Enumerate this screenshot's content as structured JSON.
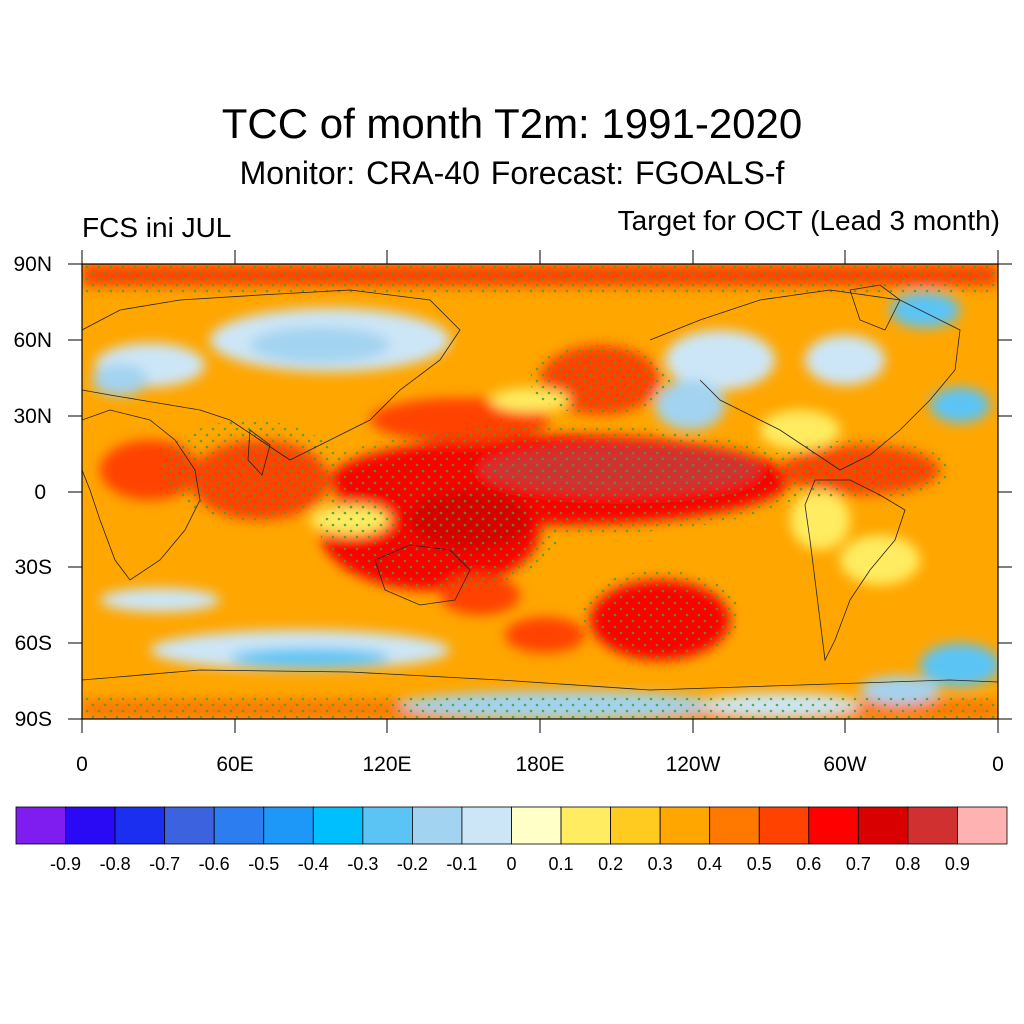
{
  "title": "TCC of month T2m: 1991-2020",
  "subtitle": "Monitor: CRA-40   Forecast: FGOALS-f",
  "left_label": "FCS ini JUL",
  "right_label": "Target for OCT (Lead 3 month)",
  "map": {
    "projection": "cylindrical equidistant",
    "lon_range": [
      0,
      360
    ],
    "lat_range": [
      -90,
      90
    ],
    "lat_ticks": [
      "90N",
      "60N",
      "30N",
      "0",
      "30S",
      "60S",
      "90S"
    ],
    "lon_ticks": [
      "0",
      "60E",
      "120E",
      "180E",
      "120W",
      "60W",
      "0"
    ],
    "stippling": "green dots mark significant correlation"
  },
  "colorbar": {
    "colors": [
      "#7f1cf0",
      "#2a0af5",
      "#1a2ff0",
      "#3c62e0",
      "#2c7ef0",
      "#1e98f8",
      "#00bfff",
      "#5cc4f5",
      "#a2d3f0",
      "#cce6f7",
      "#ffffc8",
      "#ffec60",
      "#ffcb20",
      "#ffa600",
      "#ff7800",
      "#ff4200",
      "#ff0000",
      "#d80000",
      "#d03030",
      "#ffb2b2"
    ],
    "labels": [
      "-0.9",
      "-0.8",
      "-0.7",
      "-0.6",
      "-0.5",
      "-0.4",
      "-0.3",
      "-0.2",
      "-0.1",
      "0",
      "0.1",
      "0.2",
      "0.3",
      "0.4",
      "0.5",
      "0.6",
      "0.7",
      "0.8",
      "0.9"
    ]
  }
}
